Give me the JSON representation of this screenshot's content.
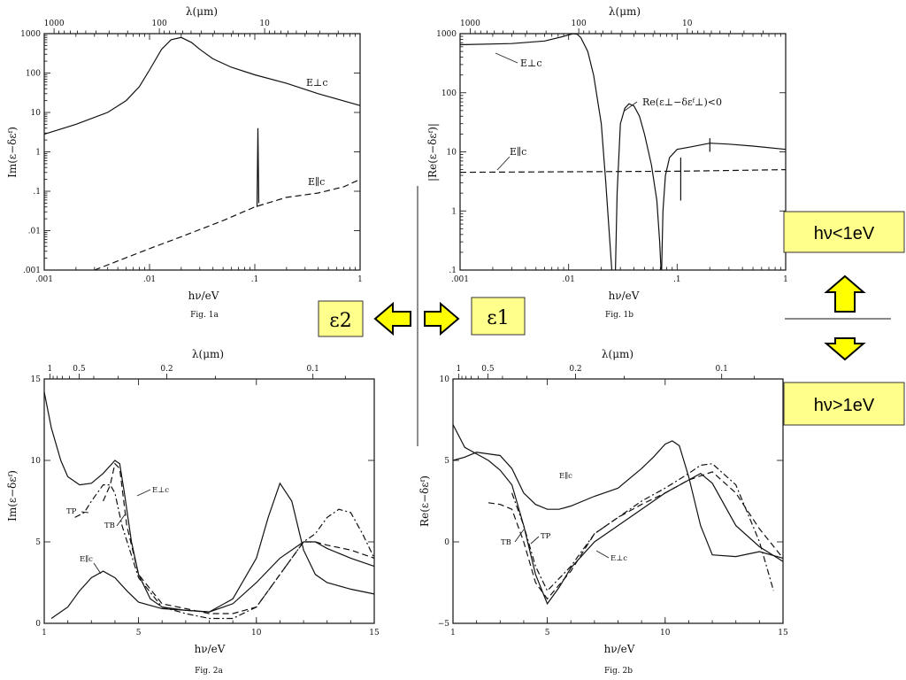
{
  "colors": {
    "highlight_box": "#ffff8c",
    "arrow_fill": "#ffff00",
    "ink": "#111111"
  },
  "labels": {
    "eps2": "ε2",
    "eps1": "ε1",
    "low_energy": "hν<1eV",
    "high_energy": "hν>1eV"
  },
  "chart_data": [
    {
      "id": "fig1a",
      "type": "line",
      "caption": "Fig. 1a",
      "xlabel": "hν/eV",
      "ylabel": "Im(ε−δεᶠ)",
      "top_axis_label": "λ(μm)",
      "xscale": "log",
      "yscale": "log",
      "xlim": [
        0.001,
        1
      ],
      "ylim": [
        0.001,
        1000
      ],
      "x_ticks": [
        ".001",
        ".01",
        ".1",
        "1"
      ],
      "y_ticks": [
        ".001",
        ".01",
        ".1",
        "1",
        "10",
        "100",
        "1000"
      ],
      "top_ticks": [
        "1000",
        "100",
        "10"
      ],
      "annotations": [
        "E⊥c",
        "E∥c"
      ],
      "series": [
        {
          "name": "E⊥c",
          "style": "solid",
          "x": [
            0.001,
            0.002,
            0.004,
            0.006,
            0.008,
            0.01,
            0.013,
            0.016,
            0.02,
            0.025,
            0.03,
            0.04,
            0.06,
            0.1,
            0.2,
            0.4,
            1
          ],
          "y": [
            2.8,
            5,
            10,
            20,
            45,
            120,
            400,
            700,
            800,
            600,
            400,
            230,
            140,
            90,
            55,
            30,
            15
          ]
        },
        {
          "name": "E∥c",
          "style": "dashed",
          "x": [
            0.003,
            0.005,
            0.01,
            0.02,
            0.05,
            0.1,
            0.2,
            0.4,
            0.7,
            1
          ],
          "y": [
            0.001,
            0.0017,
            0.0035,
            0.007,
            0.018,
            0.04,
            0.07,
            0.09,
            0.13,
            0.2
          ]
        },
        {
          "name": "E∥c spike",
          "style": "solid",
          "x": [
            0.105,
            0.107,
            0.109
          ],
          "y": [
            0.04,
            4,
            0.05
          ]
        }
      ]
    },
    {
      "id": "fig1b",
      "type": "line",
      "caption": "Fig. 1b",
      "xlabel": "hν/eV",
      "ylabel": "|Re(ε−δεᶠ)|",
      "top_axis_label": "λ(μm)",
      "xscale": "log",
      "yscale": "log",
      "xlim": [
        0.001,
        1
      ],
      "ylim": [
        0.1,
        1000
      ],
      "x_ticks": [
        ".001",
        ".01",
        ".1",
        "1"
      ],
      "y_ticks": [
        ".1",
        "1",
        "10",
        "100",
        "1000"
      ],
      "top_ticks": [
        "1000",
        "100",
        "10"
      ],
      "annotations": [
        "E⊥c",
        "Re(ε⊥−δεᶠ⊥)<0",
        "E∥c"
      ],
      "series": [
        {
          "name": "E⊥c",
          "style": "solid",
          "x": [
            0.001,
            0.003,
            0.006,
            0.009,
            0.011,
            0.012,
            0.013,
            0.015,
            0.017,
            0.02,
            0.022,
            0.024,
            0.025
          ],
          "y": [
            650,
            680,
            750,
            900,
            1000,
            980,
            850,
            500,
            200,
            30,
            3,
            0.3,
            0.1
          ]
        },
        {
          "name": "E⊥c negative",
          "style": "solid",
          "x": [
            0.027,
            0.028,
            0.03,
            0.033,
            0.036,
            0.04,
            0.045,
            0.05,
            0.058,
            0.065,
            0.069,
            0.071
          ],
          "y": [
            0.1,
            2,
            30,
            55,
            65,
            60,
            40,
            20,
            6,
            1.5,
            0.3,
            0.1
          ]
        },
        {
          "name": "E⊥c high",
          "style": "solid",
          "x": [
            0.072,
            0.074,
            0.078,
            0.085,
            0.1,
            0.13,
            0.2,
            0.3,
            0.5,
            1
          ],
          "y": [
            0.1,
            1,
            4,
            8,
            11,
            12,
            14,
            13.5,
            12.5,
            11
          ]
        },
        {
          "name": "E∥c",
          "style": "dashed",
          "x": [
            0.001,
            0.01,
            0.1,
            1
          ],
          "y": [
            4.5,
            4.6,
            4.7,
            5
          ]
        },
        {
          "name": "spike a",
          "style": "solid",
          "x": [
            0.108,
            0.108
          ],
          "y": [
            1.5,
            8
          ]
        },
        {
          "name": "spike b",
          "style": "solid",
          "x": [
            0.2,
            0.2
          ],
          "y": [
            10,
            17
          ]
        }
      ]
    },
    {
      "id": "fig2a",
      "type": "line",
      "caption": "Fig. 2a",
      "xlabel": "hν/eV",
      "ylabel": "Im(ε−δεᶠ)",
      "top_axis_label": "λ(μm)",
      "xscale": "linear",
      "yscale": "linear",
      "xlim": [
        1,
        15
      ],
      "ylim": [
        0,
        15
      ],
      "x_ticks": [
        "1",
        "5",
        "10",
        "15"
      ],
      "y_ticks": [
        "0",
        "5",
        "10",
        "15"
      ],
      "top_ticks": [
        "1",
        "0.5",
        "0.2",
        "0.1"
      ],
      "annotations": [
        "TP",
        "TB",
        "E⊥c",
        "E∥c"
      ],
      "series": [
        {
          "name": "E⊥c",
          "style": "solid",
          "x": [
            1,
            1.3,
            1.7,
            2,
            2.5,
            3,
            3.5,
            4,
            4.2,
            4.4,
            4.7,
            5,
            5.5,
            6,
            7,
            8,
            9,
            10,
            11,
            12,
            12.5,
            13,
            14,
            15
          ],
          "y": [
            14.2,
            12,
            10,
            9,
            8.5,
            8.6,
            9.2,
            10,
            9.8,
            8,
            5,
            3,
            1.5,
            1.0,
            0.8,
            0.7,
            1.2,
            2.5,
            4,
            5,
            5,
            4.6,
            4,
            3.5
          ]
        },
        {
          "name": "E∥c",
          "style": "solid",
          "x": [
            1.3,
            2,
            2.5,
            3,
            3.5,
            4,
            4.5,
            5,
            6,
            7,
            8,
            9,
            10,
            10.5,
            11,
            11.5,
            12,
            12.5,
            13,
            14,
            15
          ],
          "y": [
            0.3,
            1,
            2,
            2.8,
            3.2,
            2.8,
            2,
            1.3,
            0.9,
            0.8,
            0.7,
            1.5,
            4,
            6.5,
            8.6,
            7.5,
            4.5,
            3,
            2.5,
            2.1,
            1.8
          ]
        },
        {
          "name": "TB",
          "style": "dashed",
          "x": [
            3.5,
            3.8,
            4,
            4.2,
            4.5,
            5,
            6,
            7,
            8,
            9,
            10,
            11,
            12,
            12.5,
            13,
            14,
            15
          ],
          "y": [
            7.5,
            8.5,
            9.8,
            9.5,
            6,
            3,
            1.2,
            0.9,
            0.6,
            0.6,
            1,
            3,
            5,
            5,
            4.8,
            4.5,
            4
          ]
        },
        {
          "name": "TP",
          "style": "dashdot",
          "x": [
            2.3,
            2.7,
            3,
            3.5,
            3.8,
            4,
            4.3,
            5,
            6,
            7,
            8,
            9,
            10,
            11,
            12,
            12.5,
            13,
            13.5,
            14,
            14.5,
            15
          ],
          "y": [
            6.5,
            6.8,
            7.5,
            8.5,
            8.5,
            8,
            6,
            2.8,
            1,
            0.6,
            0.3,
            0.3,
            1,
            3,
            5,
            5.5,
            6.5,
            7,
            6.8,
            5.5,
            4
          ]
        }
      ]
    },
    {
      "id": "fig2b",
      "type": "line",
      "caption": "Fig. 2b",
      "xlabel": "hν/eV",
      "ylabel": "Re(ε−δεᶠ)",
      "top_axis_label": "λ(μm)",
      "xscale": "linear",
      "yscale": "linear",
      "xlim": [
        1,
        15
      ],
      "ylim": [
        -5,
        10
      ],
      "x_ticks": [
        "1",
        "5",
        "10",
        "15"
      ],
      "y_ticks": [
        "−5",
        "0",
        "5",
        "10"
      ],
      "top_ticks": [
        "1",
        "0.5",
        "0.2",
        "0.1"
      ],
      "annotations": [
        "E∥c",
        "TB",
        "TP",
        "E⊥c"
      ],
      "series": [
        {
          "name": "E⊥c",
          "style": "solid",
          "x": [
            1,
            1.5,
            2,
            2.5,
            3,
            3.5,
            4,
            4.5,
            5,
            5.5,
            6,
            7,
            8,
            9,
            10,
            11,
            11.5,
            12,
            13,
            14,
            15
          ],
          "y": [
            7.2,
            5.8,
            5.4,
            5,
            4.4,
            3.5,
            1,
            -2,
            -3.8,
            -2.8,
            -1.6,
            0,
            1,
            2,
            3,
            3.8,
            4.2,
            3.6,
            1,
            -0.3,
            -1.2
          ]
        },
        {
          "name": "E∥c",
          "style": "solid",
          "x": [
            1,
            1.5,
            2,
            3,
            3.5,
            4,
            4.5,
            5,
            5.5,
            6,
            7,
            8,
            9,
            9.5,
            10,
            10.3,
            10.6,
            11,
            11.5,
            12,
            13,
            14,
            15
          ],
          "y": [
            5,
            5.2,
            5.5,
            5.3,
            4.5,
            3,
            2.3,
            2,
            2,
            2.2,
            2.8,
            3.3,
            4.5,
            5.2,
            6,
            6.2,
            5.9,
            4,
            1,
            -0.8,
            -0.9,
            -0.6,
            -1
          ]
        },
        {
          "name": "TB",
          "style": "dashed",
          "x": [
            2.5,
            3,
            3.5,
            4,
            4.5,
            5,
            6,
            7,
            8,
            9,
            10,
            11,
            12,
            13,
            14,
            15
          ],
          "y": [
            2.4,
            2.3,
            2,
            0,
            -2.5,
            -3.5,
            -1.8,
            0.5,
            1.5,
            2.3,
            3,
            3.8,
            4.3,
            3,
            0.8,
            -1
          ]
        },
        {
          "name": "TP",
          "style": "dashdot",
          "x": [
            3.5,
            4,
            4.5,
            5,
            6,
            7,
            8,
            9,
            10,
            11,
            11.5,
            12,
            13,
            14,
            14.6
          ],
          "y": [
            3,
            1,
            -1.5,
            -3,
            -1.5,
            0.5,
            1.5,
            2.5,
            3.3,
            4.2,
            4.7,
            4.8,
            3.5,
            0,
            -3
          ]
        }
      ]
    }
  ]
}
